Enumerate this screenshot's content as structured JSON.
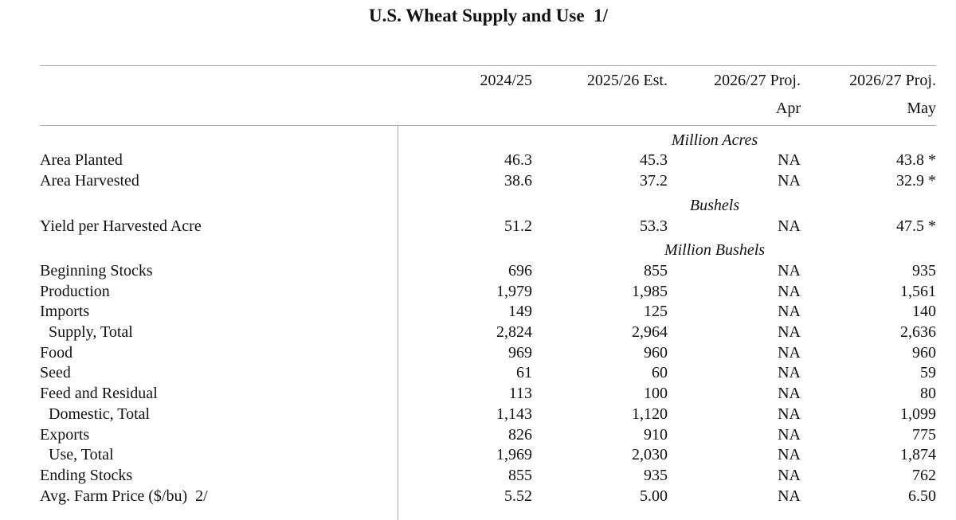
{
  "header": {
    "title": "U.S. Wheat Supply and Use  1/"
  },
  "table": {
    "columns": [
      {
        "label": "2024/25"
      },
      {
        "label": "2025/26 Est."
      },
      {
        "label": "2026/27 Proj.",
        "sublabel": "Apr"
      },
      {
        "label": "2026/27 Proj.",
        "sublabel": "May"
      }
    ],
    "sections": [
      {
        "unit": "Million Acres",
        "rows": [
          {
            "label": "Area Planted",
            "values": [
              "46.3",
              "45.3",
              "NA",
              "43.8 *"
            ]
          },
          {
            "label": "Area Harvested",
            "values": [
              "38.6",
              "37.2",
              "NA",
              "32.9 *"
            ]
          }
        ]
      },
      {
        "unit": "Bushels",
        "rows": [
          {
            "label": "Yield per Harvested Acre",
            "values": [
              "51.2",
              "53.3",
              "NA",
              "47.5 *"
            ]
          }
        ]
      },
      {
        "unit": "Million Bushels",
        "rows": [
          {
            "label": "Beginning Stocks",
            "values": [
              "696",
              "855",
              "NA",
              "935"
            ]
          },
          {
            "label": "Production",
            "values": [
              "1,979",
              "1,985",
              "NA",
              "1,561"
            ]
          },
          {
            "label": "Imports",
            "values": [
              "149",
              "125",
              "NA",
              "140"
            ]
          },
          {
            "label": "Supply, Total",
            "values": [
              "2,824",
              "2,964",
              "NA",
              "2,636"
            ]
          },
          {
            "label": "Food",
            "values": [
              "969",
              "960",
              "NA",
              "960"
            ]
          },
          {
            "label": "Seed",
            "values": [
              "61",
              "60",
              "NA",
              "59"
            ]
          },
          {
            "label": "Feed and Residual",
            "values": [
              "113",
              "100",
              "NA",
              "80"
            ]
          },
          {
            "label": "Domestic, Total",
            "values": [
              "1,143",
              "1,120",
              "NA",
              "1,099"
            ]
          },
          {
            "label": "Exports",
            "values": [
              "826",
              "910",
              "NA",
              "775"
            ]
          },
          {
            "label": "Use, Total",
            "values": [
              "1,969",
              "2,030",
              "NA",
              "1,874"
            ]
          },
          {
            "label": "Ending Stocks",
            "values": [
              "855",
              "935",
              "NA",
              "762"
            ]
          },
          {
            "label": "Avg. Farm Price ($/bu)  2/",
            "values": [
              "5.52",
              "5.00",
              "NA",
              "6.50"
            ]
          }
        ]
      }
    ]
  }
}
